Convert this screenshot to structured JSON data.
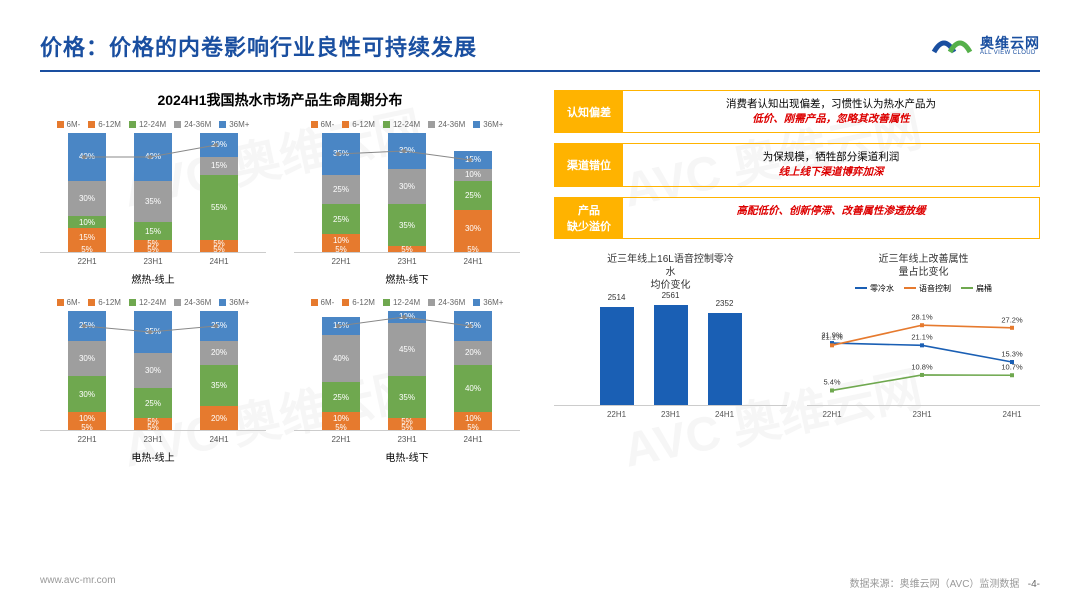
{
  "header": {
    "title": "价格：价格的内卷影响行业良性可持续发展",
    "logo_cn": "奥维云网",
    "logo_en": "ALL VIEW CLOUD"
  },
  "colors": {
    "c6m": "#e67a2e",
    "c6_12": "#e67a2e",
    "c12_24": "#6fa84f",
    "c24_36": "#9e9e9e",
    "c36p": "#4a86c5",
    "accent": "#1a4fa0",
    "tag": "#ffb300",
    "red": "#d00000",
    "line_blue": "#1a5fb4",
    "line_orange": "#e67a2e",
    "line_green": "#6fa84f"
  },
  "left": {
    "title": "2024H1我国热水市场产品生命周期分布",
    "legend": [
      "6M-",
      "6-12M",
      "12-24M",
      "24-36M",
      "36M+"
    ],
    "charts": [
      {
        "sub": "燃热-线上",
        "bars": [
          {
            "x": "22H1",
            "segs": [
              5,
              15,
              10,
              30,
              40
            ]
          },
          {
            "x": "23H1",
            "segs": [
              5,
              5,
              15,
              35,
              40
            ]
          },
          {
            "x": "24H1",
            "segs": [
              5,
              5,
              55,
              15,
              20
            ]
          }
        ]
      },
      {
        "sub": "燃热-线下",
        "bars": [
          {
            "x": "22H1",
            "segs": [
              5,
              10,
              25,
              25,
              35
            ]
          },
          {
            "x": "23H1",
            "segs": [
              0,
              5,
              35,
              30,
              30
            ]
          },
          {
            "x": "24H1",
            "segs": [
              5,
              30,
              25,
              10,
              15
            ]
          }
        ]
      },
      {
        "sub": "电热-线上",
        "bars": [
          {
            "x": "22H1",
            "segs": [
              5,
              10,
              30,
              30,
              25
            ]
          },
          {
            "x": "23H1",
            "segs": [
              5,
              5,
              25,
              30,
              35
            ]
          },
          {
            "x": "24H1",
            "segs": [
              0,
              20,
              35,
              20,
              25
            ]
          }
        ]
      },
      {
        "sub": "电热-线下",
        "bars": [
          {
            "x": "22H1",
            "segs": [
              5,
              10,
              25,
              40,
              15
            ]
          },
          {
            "x": "23H1",
            "segs": [
              5,
              5,
              35,
              45,
              10
            ]
          },
          {
            "x": "24H1",
            "segs": [
              5,
              10,
              40,
              20,
              25
            ]
          }
        ]
      }
    ]
  },
  "right": {
    "tags": [
      {
        "label": "认知偏差",
        "line1": "消费者认知出现偏差，习惯性认为热水产品为",
        "line2": "低价、刚需产品，忽略其改善属性"
      },
      {
        "label": "渠道错位",
        "line1": "为保规模，牺牲部分渠道利润",
        "line2": "线上线下渠道博弈加深"
      },
      {
        "label": "产品\n缺少溢价",
        "line1": "",
        "line2": "高配低价、创新停滞、改善属性渗透放缓"
      }
    ],
    "bar_chart": {
      "title": "近三年线上16L语音控制零冷\n水\n均价变化",
      "bars": [
        {
          "x": "22H1",
          "v": 2514
        },
        {
          "x": "23H1",
          "v": 2561
        },
        {
          "x": "24H1",
          "v": 2352
        }
      ],
      "ymax": 2800
    },
    "line_chart": {
      "title": "近三年线上改善属性\n量占比变化",
      "legend": [
        "零冷水",
        "语音控制",
        "扁桶"
      ],
      "x": [
        "22H1",
        "23H1",
        "24H1"
      ],
      "series": [
        {
          "name": "零冷水",
          "color": "#1a5fb4",
          "vals": [
            21.9,
            21.1,
            15.3
          ]
        },
        {
          "name": "语音控制",
          "color": "#e67a2e",
          "vals": [
            21.1,
            28.1,
            27.2
          ]
        },
        {
          "name": "扁桶",
          "color": "#6fa84f",
          "vals": [
            5.4,
            10.8,
            10.7
          ]
        }
      ],
      "ymin": 0,
      "ymax": 32
    }
  },
  "footer": {
    "url": "www.avc-mr.com",
    "source": "数据来源：奥维云网（AVC）监测数据",
    "page": "-4-"
  },
  "watermark": "AVC 奥维云网"
}
